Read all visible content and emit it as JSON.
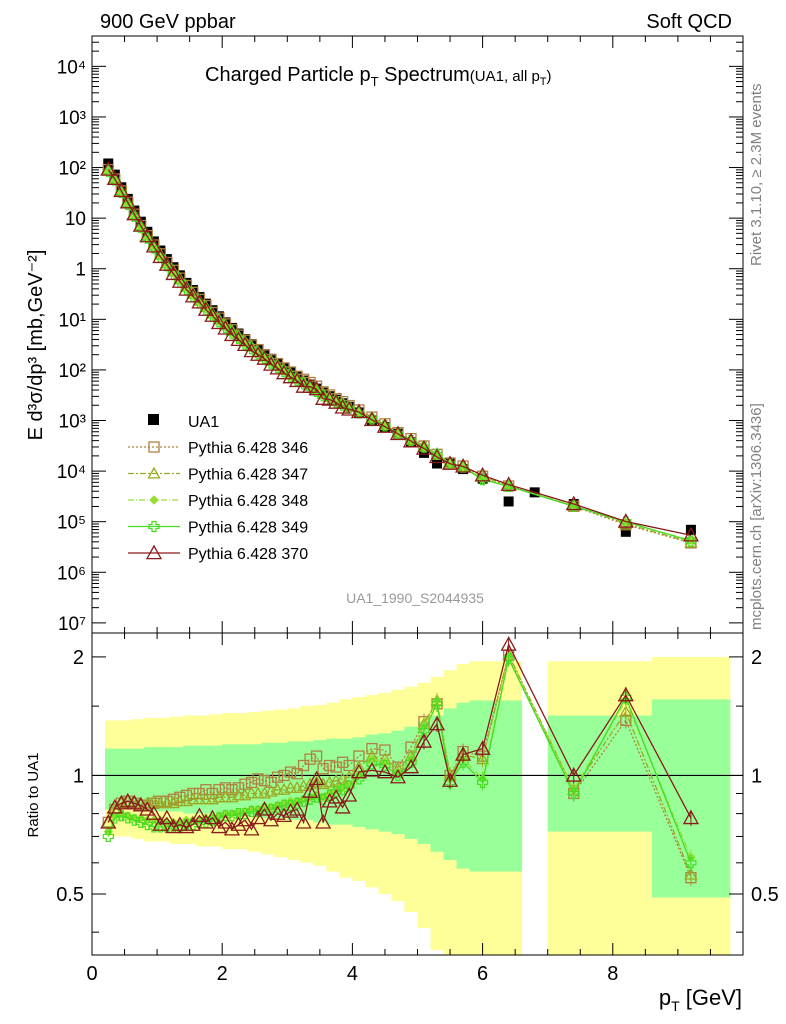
{
  "header": {
    "left": "900 GeV ppbar",
    "right": "Soft QCD"
  },
  "side_labels": {
    "top": "Rivet 3.1.10, ≥ 2.3M events",
    "bottom": "mcplots.cern.ch [arXiv:1306.3436]"
  },
  "chart_data": {
    "type": "scatter",
    "title": "Charged Particle p",
    "title_sub": "T",
    "title_tail": " Spectrum",
    "title_note": "(UA1, all p",
    "title_note_sub": "T",
    "title_note_tail": ")",
    "analysis_id": "UA1_1990_S2044935",
    "ylabel_main": "E d³σ/dp³ [mb,GeV⁻²]",
    "ylabel_ratio": "Ratio to UA1",
    "xlabel": "p",
    "xlabel_sub": "T",
    "xlabel_tail": " [GeV]",
    "xlim": [
      0,
      10
    ],
    "ylim_main_log10": [
      -7.2,
      4.6
    ],
    "ylim_ratio": [
      0.35,
      2.3
    ],
    "xticks": [
      "0",
      "2",
      "4",
      "6",
      "8"
    ],
    "yticks_main": [
      "10⁷",
      "10⁶",
      "10⁵",
      "10⁴",
      "10³",
      "10²",
      "10¹",
      "1",
      "10",
      "10²",
      "10³",
      "10⁴"
    ],
    "yticks_ratio": [
      "0.5",
      "1",
      "2"
    ],
    "ua1": {
      "name": "UA1",
      "x": [
        0.25,
        0.35,
        0.45,
        0.55,
        0.65,
        0.75,
        0.85,
        0.95,
        1.05,
        1.15,
        1.25,
        1.35,
        1.45,
        1.55,
        1.65,
        1.75,
        1.85,
        1.95,
        2.05,
        2.15,
        2.25,
        2.35,
        2.45,
        2.55,
        2.65,
        2.75,
        2.85,
        2.95,
        3.05,
        3.15,
        3.25,
        3.35,
        3.45,
        3.55,
        3.65,
        3.75,
        3.85,
        3.95,
        4.1,
        4.3,
        4.5,
        4.7,
        4.9,
        5.1,
        5.3,
        5.5,
        5.7,
        6.0,
        6.4,
        6.8,
        7.4,
        8.2,
        9.2
      ],
      "log10y": [
        2.08,
        1.86,
        1.61,
        1.38,
        1.15,
        0.93,
        0.73,
        0.54,
        0.36,
        0.19,
        0.03,
        -0.13,
        -0.28,
        -0.42,
        -0.56,
        -0.69,
        -0.82,
        -0.94,
        -1.06,
        -1.17,
        -1.28,
        -1.39,
        -1.49,
        -1.59,
        -1.69,
        -1.78,
        -1.87,
        -1.96,
        -2.05,
        -2.13,
        -2.21,
        -2.29,
        -2.37,
        -2.45,
        -2.52,
        -2.59,
        -2.66,
        -2.73,
        -2.84,
        -3.0,
        -3.13,
        -3.26,
        -3.43,
        -3.64,
        -3.85,
        -3.84,
        -3.96,
        -4.15,
        -4.6,
        -4.42,
        -4.65,
        -5.2,
        -5.16
      ]
    },
    "ratio_band": {
      "x_edges": [
        0.2,
        0.4,
        0.6,
        0.8,
        1.0,
        1.2,
        1.4,
        1.6,
        1.8,
        2.0,
        2.2,
        2.4,
        2.6,
        2.8,
        3.0,
        3.2,
        3.4,
        3.6,
        3.8,
        4.0,
        4.2,
        4.4,
        4.6,
        4.8,
        5.0,
        5.2,
        5.4,
        5.6,
        5.8,
        6.0,
        6.2,
        6.6,
        7.0,
        7.8,
        8.6,
        9.8
      ],
      "inner_lo": [
        0.82,
        0.82,
        0.82,
        0.81,
        0.81,
        0.81,
        0.8,
        0.8,
        0.8,
        0.79,
        0.79,
        0.79,
        0.78,
        0.78,
        0.77,
        0.77,
        0.76,
        0.75,
        0.75,
        0.74,
        0.73,
        0.72,
        0.71,
        0.69,
        0.67,
        0.64,
        0.61,
        0.58,
        0.57,
        0.57,
        0.57,
        null,
        0.72,
        0.72,
        0.49,
        0.49
      ],
      "inner_hi": [
        1.17,
        1.17,
        1.17,
        1.18,
        1.18,
        1.18,
        1.19,
        1.19,
        1.19,
        1.2,
        1.2,
        1.2,
        1.21,
        1.21,
        1.22,
        1.22,
        1.23,
        1.24,
        1.24,
        1.25,
        1.27,
        1.28,
        1.3,
        1.33,
        1.37,
        1.42,
        1.48,
        1.53,
        1.55,
        1.55,
        1.55,
        null,
        1.42,
        1.42,
        1.56,
        1.56
      ],
      "outer_lo": [
        0.7,
        0.7,
        0.69,
        0.68,
        0.68,
        0.67,
        0.67,
        0.66,
        0.66,
        0.65,
        0.65,
        0.64,
        0.63,
        0.62,
        0.61,
        0.6,
        0.59,
        0.57,
        0.55,
        0.54,
        0.52,
        0.5,
        0.48,
        0.45,
        0.41,
        0.36,
        0.3,
        0.25,
        0.25,
        0.25,
        0.25,
        null,
        0.25,
        0.25,
        0.25,
        0.25
      ],
      "outer_hi": [
        1.38,
        1.38,
        1.39,
        1.4,
        1.4,
        1.41,
        1.42,
        1.42,
        1.43,
        1.44,
        1.44,
        1.45,
        1.46,
        1.47,
        1.48,
        1.5,
        1.51,
        1.53,
        1.56,
        1.58,
        1.6,
        1.62,
        1.65,
        1.68,
        1.72,
        1.78,
        1.85,
        1.92,
        1.95,
        1.95,
        1.95,
        null,
        1.95,
        1.95,
        2.0,
        1.98
      ]
    },
    "series": [
      {
        "name": "Pythia 6.428 346",
        "color": "#b08040",
        "marker": "square",
        "dash": "2,2",
        "ratio": [
          0.76,
          0.82,
          0.85,
          0.86,
          0.85,
          0.84,
          0.84,
          0.85,
          0.86,
          0.86,
          0.87,
          0.88,
          0.89,
          0.9,
          0.9,
          0.92,
          0.9,
          0.92,
          0.93,
          0.92,
          0.93,
          0.95,
          0.96,
          0.98,
          0.97,
          0.96,
          0.99,
          1.0,
          1.02,
          1.01,
          1.06,
          1.1,
          1.12,
          1.04,
          1.06,
          1.05,
          1.08,
          1.06,
          1.12,
          1.17,
          1.16,
          1.05,
          1.18,
          1.37,
          1.52,
          1.0,
          1.15,
          1.12,
          2.02,
          null,
          0.9,
          1.38,
          0.55
        ]
      },
      {
        "name": "Pythia 6.428 347",
        "color": "#9aaa22",
        "marker": "triangle",
        "dash": "6,2,2,2",
        "ratio": [
          0.76,
          0.82,
          0.85,
          0.86,
          0.86,
          0.85,
          0.85,
          0.86,
          0.85,
          0.85,
          0.85,
          0.86,
          0.86,
          0.87,
          0.87,
          0.87,
          0.87,
          0.88,
          0.88,
          0.88,
          0.89,
          0.89,
          0.9,
          0.9,
          0.9,
          0.91,
          0.92,
          0.92,
          0.93,
          0.93,
          0.94,
          0.95,
          0.96,
          0.95,
          0.96,
          0.97,
          0.98,
          0.99,
          1.05,
          1.12,
          1.1,
          1.04,
          1.12,
          1.35,
          1.55,
          1.0,
          1.13,
          1.1,
          2.03,
          null,
          0.92,
          1.45,
          0.56
        ]
      },
      {
        "name": "Pythia 6.428 348",
        "color": "#99dd33",
        "marker": "diamond",
        "dash": "6,2,1,2",
        "ratio": [
          0.72,
          0.79,
          0.8,
          0.79,
          0.78,
          0.78,
          0.77,
          0.77,
          0.77,
          0.76,
          0.76,
          0.76,
          0.77,
          0.77,
          0.77,
          0.78,
          0.78,
          0.79,
          0.8,
          0.8,
          0.8,
          0.81,
          0.82,
          0.82,
          0.83,
          0.83,
          0.84,
          0.85,
          0.86,
          0.86,
          0.87,
          0.88,
          0.89,
          0.88,
          0.9,
          0.92,
          0.93,
          0.95,
          1.0,
          1.1,
          1.08,
          1.02,
          1.1,
          1.33,
          1.55,
          0.98,
          1.1,
          0.98,
          2.0,
          null,
          0.92,
          1.55,
          0.62
        ]
      },
      {
        "name": "Pythia 6.428 349",
        "color": "#44dd22",
        "marker": "cross",
        "dash": "",
        "ratio": [
          0.7,
          0.78,
          0.79,
          0.78,
          0.77,
          0.76,
          0.75,
          0.74,
          0.74,
          0.74,
          0.74,
          0.74,
          0.75,
          0.75,
          0.76,
          0.76,
          0.77,
          0.78,
          0.79,
          0.79,
          0.8,
          0.8,
          0.81,
          0.81,
          0.82,
          0.82,
          0.83,
          0.84,
          0.84,
          0.85,
          0.86,
          0.87,
          0.88,
          0.87,
          0.89,
          0.91,
          0.92,
          0.94,
          0.98,
          1.07,
          1.06,
          1.0,
          1.08,
          1.3,
          1.52,
          0.96,
          1.08,
          0.96,
          1.98,
          null,
          0.9,
          1.58,
          0.6
        ]
      },
      {
        "name": "Pythia 6.428 370",
        "color": "#8b1a1a",
        "marker": "triangle-open",
        "dash": "",
        "ratio": [
          0.76,
          0.83,
          0.85,
          0.86,
          0.85,
          0.84,
          0.82,
          0.8,
          0.75,
          0.78,
          0.74,
          0.75,
          0.74,
          0.75,
          0.79,
          0.76,
          0.78,
          0.74,
          0.76,
          0.73,
          0.75,
          0.77,
          0.73,
          0.78,
          0.82,
          0.77,
          0.8,
          0.79,
          0.81,
          0.82,
          0.76,
          0.91,
          0.98,
          0.76,
          0.86,
          0.88,
          0.83,
          0.89,
          1.02,
          1.03,
          1.02,
          0.99,
          1.05,
          1.22,
          1.35,
          0.97,
          1.13,
          1.17,
          2.15,
          null,
          1.0,
          1.6,
          0.78
        ]
      }
    ]
  }
}
